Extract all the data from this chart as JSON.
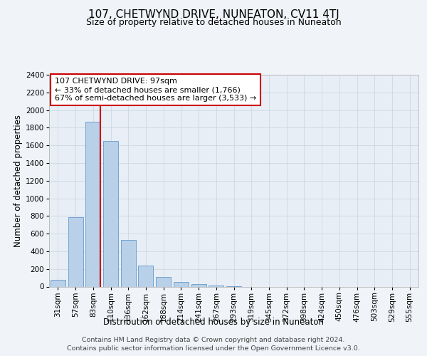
{
  "title": "107, CHETWYND DRIVE, NUNEATON, CV11 4TJ",
  "subtitle": "Size of property relative to detached houses in Nuneaton",
  "xlabel": "Distribution of detached houses by size in Nuneaton",
  "ylabel": "Number of detached properties",
  "footer_line1": "Contains HM Land Registry data © Crown copyright and database right 2024.",
  "footer_line2": "Contains public sector information licensed under the Open Government Licence v3.0.",
  "categories": [
    "31sqm",
    "57sqm",
    "83sqm",
    "110sqm",
    "136sqm",
    "162sqm",
    "188sqm",
    "214sqm",
    "241sqm",
    "267sqm",
    "293sqm",
    "319sqm",
    "345sqm",
    "372sqm",
    "398sqm",
    "424sqm",
    "450sqm",
    "476sqm",
    "503sqm",
    "529sqm",
    "555sqm"
  ],
  "values": [
    75,
    790,
    1870,
    1650,
    530,
    240,
    105,
    50,
    30,
    15,
    5,
    0,
    0,
    0,
    0,
    0,
    0,
    0,
    0,
    0,
    0
  ],
  "bar_color": "#b8d0e8",
  "bar_edgecolor": "#6699cc",
  "vline_color": "#cc0000",
  "vline_pos": 2.43,
  "annotation_line1": "107 CHETWYND DRIVE: 97sqm",
  "annotation_line2": "← 33% of detached houses are smaller (1,766)",
  "annotation_line3": "67% of semi-detached houses are larger (3,533) →",
  "annotation_box_edgecolor": "#cc0000",
  "annotation_box_facecolor": "#ffffff",
  "ylim": [
    0,
    2400
  ],
  "yticks": [
    0,
    200,
    400,
    600,
    800,
    1000,
    1200,
    1400,
    1600,
    1800,
    2000,
    2200,
    2400
  ],
  "plot_bg_color": "#e8eef5",
  "fig_bg_color": "#f0f4f8",
  "title_fontsize": 11,
  "subtitle_fontsize": 9,
  "axis_label_fontsize": 8.5,
  "tick_fontsize": 7.5,
  "annotation_fontsize": 8,
  "footer_fontsize": 6.8
}
